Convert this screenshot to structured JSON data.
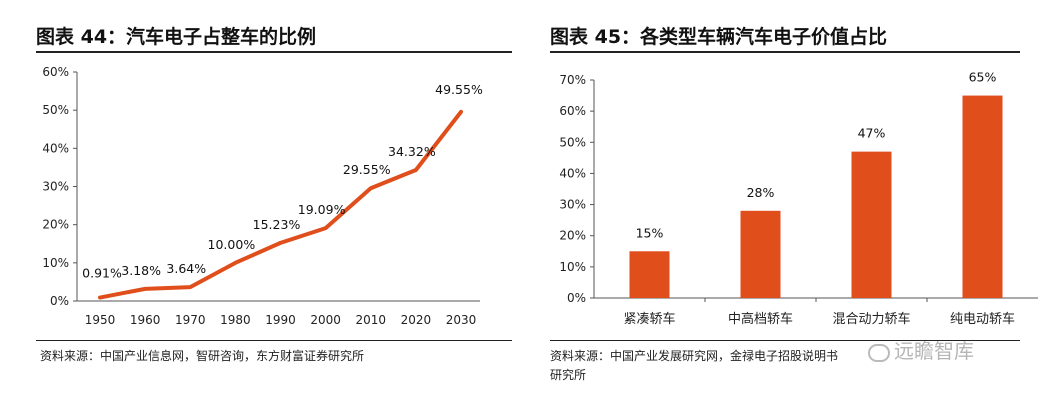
{
  "left": {
    "title": "图表 44：汽车电子占整车的比例",
    "source": "资料来源：中国产业信息网，智研咨询，东方财富证券研究所"
  },
  "right": {
    "title": "图表 45：各类型车辆汽车电子价值占比",
    "source_line1": "资料来源：中国产业发展研究网，金禄电子招股说明书",
    "source_line2": "研究所"
  },
  "watermark": "远瞻智库",
  "chart_data": [
    {
      "type": "line",
      "title": "",
      "xlabel": "",
      "ylabel": "",
      "x": [
        1950,
        1960,
        1970,
        1980,
        1990,
        2000,
        2010,
        2020,
        2030
      ],
      "x_tick_labels": [
        "1950",
        "1960",
        "1970",
        "1980",
        "1990",
        "2000",
        "2010",
        "2020",
        "2030"
      ],
      "values": [
        0.91,
        3.18,
        3.64,
        10.0,
        15.23,
        19.09,
        29.55,
        34.32,
        49.55
      ],
      "data_labels": [
        "0.91%",
        "3.18%",
        "3.64%",
        "10.00%",
        "15.23%",
        "19.09%",
        "29.55%",
        "34.32%",
        "49.55%"
      ],
      "ylim": [
        0,
        60
      ],
      "y_ticks": [
        0,
        10,
        20,
        30,
        40,
        50,
        60
      ],
      "y_tick_labels": [
        "0%",
        "10%",
        "20%",
        "30%",
        "40%",
        "50%",
        "60%"
      ],
      "grid": false,
      "color": "#E04E1C"
    },
    {
      "type": "bar",
      "title": "",
      "xlabel": "",
      "ylabel": "",
      "categories": [
        "紧凑轿车",
        "中高档轿车",
        "混合动力轿车",
        "纯电动轿车"
      ],
      "values": [
        15,
        28,
        47,
        65
      ],
      "data_labels": [
        "15%",
        "28%",
        "47%",
        "65%"
      ],
      "ylim": [
        0,
        70
      ],
      "y_ticks": [
        0,
        10,
        20,
        30,
        40,
        50,
        60,
        70
      ],
      "y_tick_labels": [
        "0%",
        "10%",
        "20%",
        "30%",
        "40%",
        "50%",
        "60%",
        "70%"
      ],
      "grid": false,
      "color": "#E04E1C"
    }
  ]
}
